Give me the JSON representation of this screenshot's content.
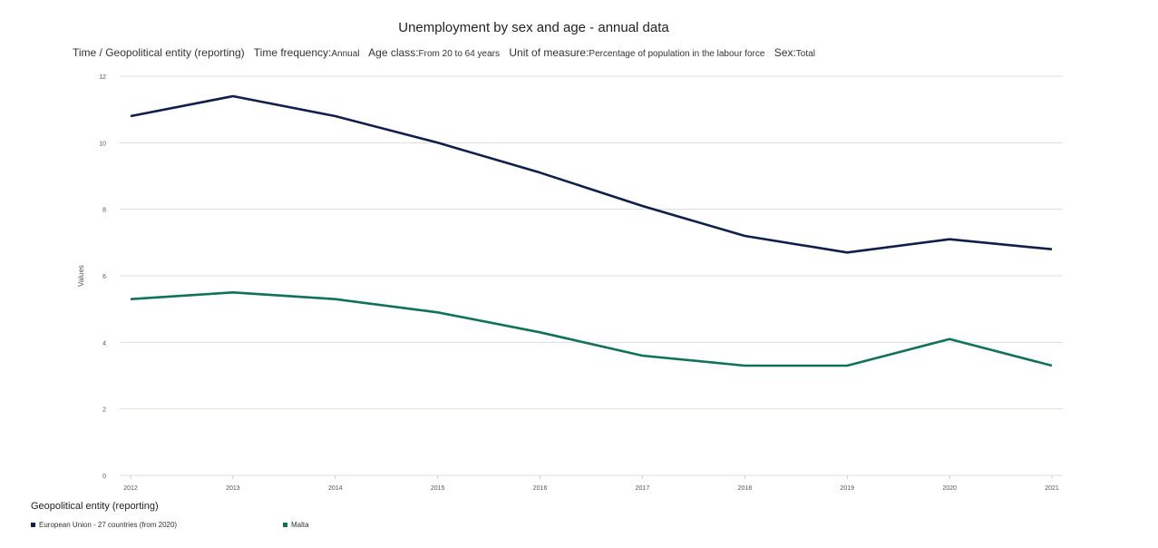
{
  "chart_data": {
    "type": "line",
    "title": "Unemployment by sex and age - annual data",
    "subtitle": {
      "time_label": "Time / Geopolitical entity (reporting)",
      "freq_key": "Time frequency:",
      "freq_val": "Annual",
      "age_key": "Age class:",
      "age_val": "From 20 to 64 years",
      "unit_key": "Unit of measure:",
      "unit_val": "Percentage of population in the labour force",
      "sex_key": "Sex:",
      "sex_val": "Total"
    },
    "ylabel": "Values",
    "ylim": [
      0,
      12
    ],
    "yticks": [
      "0",
      "2",
      "4",
      "6",
      "8",
      "10",
      "12"
    ],
    "grid": true,
    "categories": [
      "2012",
      "2013",
      "2014",
      "2015",
      "2016",
      "2017",
      "2018",
      "2019",
      "2020",
      "2021"
    ],
    "legend_title": "Geopolitical entity (reporting)",
    "legend_placement": "bottom-left",
    "series": [
      {
        "name": "European Union - 27 countries (from 2020)",
        "color": "#0e1f4d",
        "values": [
          10.8,
          11.4,
          10.8,
          10.0,
          9.1,
          8.1,
          7.2,
          6.7,
          7.1,
          6.8
        ]
      },
      {
        "name": "Malta",
        "color": "#0f7358",
        "values": [
          5.3,
          5.5,
          5.3,
          4.9,
          4.3,
          3.6,
          3.3,
          3.3,
          4.1,
          3.3
        ]
      }
    ]
  }
}
